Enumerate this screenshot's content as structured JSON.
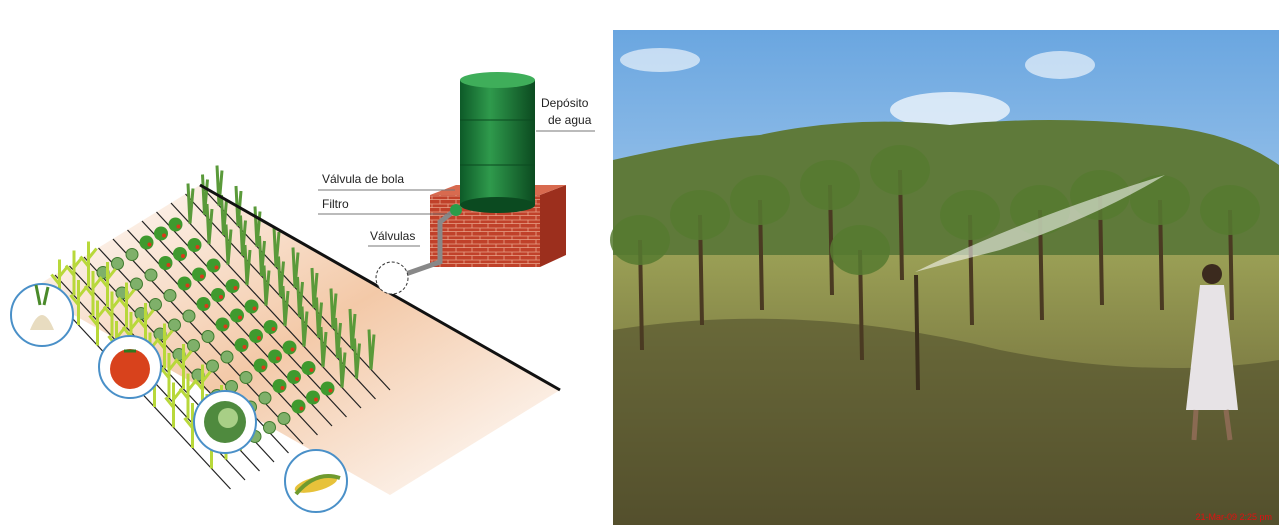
{
  "diagram": {
    "labels": {
      "tank": [
        "Depósito",
        "de agua"
      ],
      "ball_valve": "Válvula de bola",
      "filter": "Filtro",
      "valves": "Válvulas"
    }
  },
  "photo": {
    "timestamp": "21-Mar-09 2:25 pm"
  }
}
